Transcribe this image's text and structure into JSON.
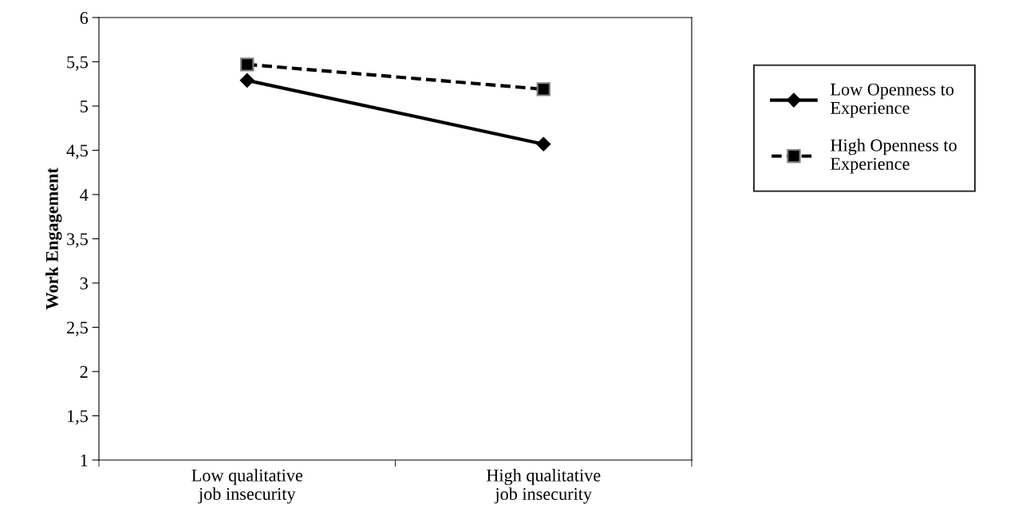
{
  "chart_data": {
    "type": "line",
    "ylabel": "Work Engagement",
    "categories": [
      "Low qualitative\njob insecurity",
      "High qualitative\njob insecurity"
    ],
    "series": [
      {
        "name": "Low Openness to\nExperience",
        "color": "#000000",
        "values": [
          5.29,
          4.57
        ],
        "marker": "diamond",
        "line_style": "solid"
      },
      {
        "name": "High Openness to\nExperience",
        "color": "#000000",
        "values": [
          5.47,
          5.19
        ],
        "marker": "square",
        "line_style": "dashed"
      }
    ],
    "ylim": [
      1,
      6
    ],
    "yticks": [
      1,
      {
        "value": 1.5,
        "label": "1,5"
      },
      2,
      {
        "value": 2.5,
        "label": "2,5"
      },
      3,
      {
        "value": 3.5,
        "label": "3,5"
      },
      4,
      {
        "value": 4.5,
        "label": "4,5"
      },
      5,
      {
        "value": 5.5,
        "label": "5,5"
      },
      6
    ],
    "grid": false,
    "legend": "right"
  }
}
